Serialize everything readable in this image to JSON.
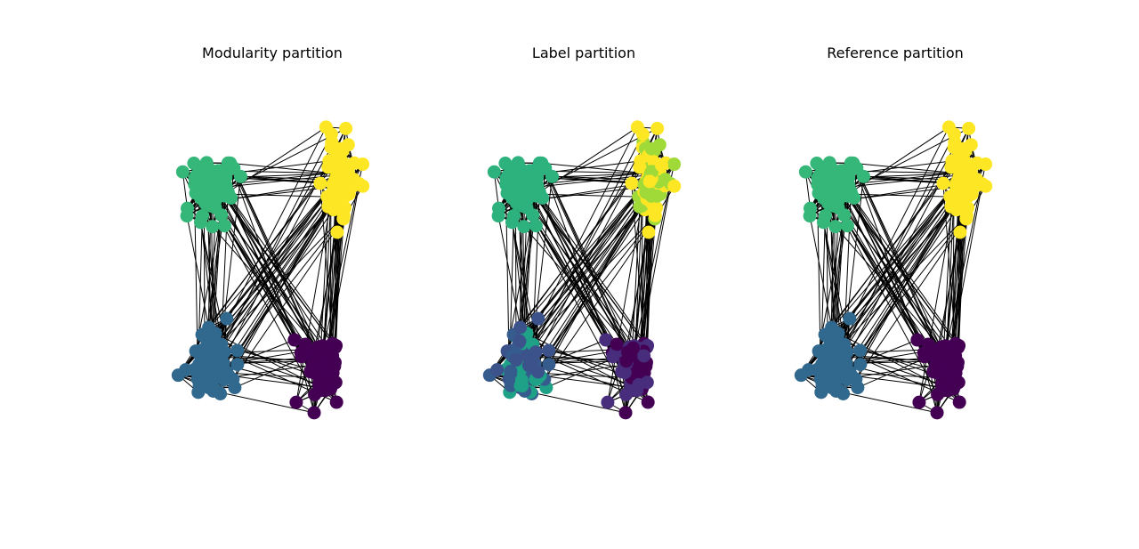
{
  "figure": {
    "panels": [
      {
        "id": "modularity",
        "title": "Modularity partition",
        "community_colors": [
          "#35b779",
          "#fde725",
          "#31688e",
          "#440154"
        ]
      },
      {
        "id": "label",
        "title": "Label partition",
        "community_colors": [
          "#2db27d",
          "#a0da39",
          "#fde725",
          "#3b528b",
          "#440154",
          "#472d7b",
          "#1fa187",
          "#365c8d"
        ]
      },
      {
        "id": "reference",
        "title": "Reference partition",
        "community_colors": [
          "#35b779",
          "#fde725",
          "#31688e",
          "#440154"
        ]
      }
    ],
    "edge_color": "#000000",
    "background": "#ffffff"
  }
}
